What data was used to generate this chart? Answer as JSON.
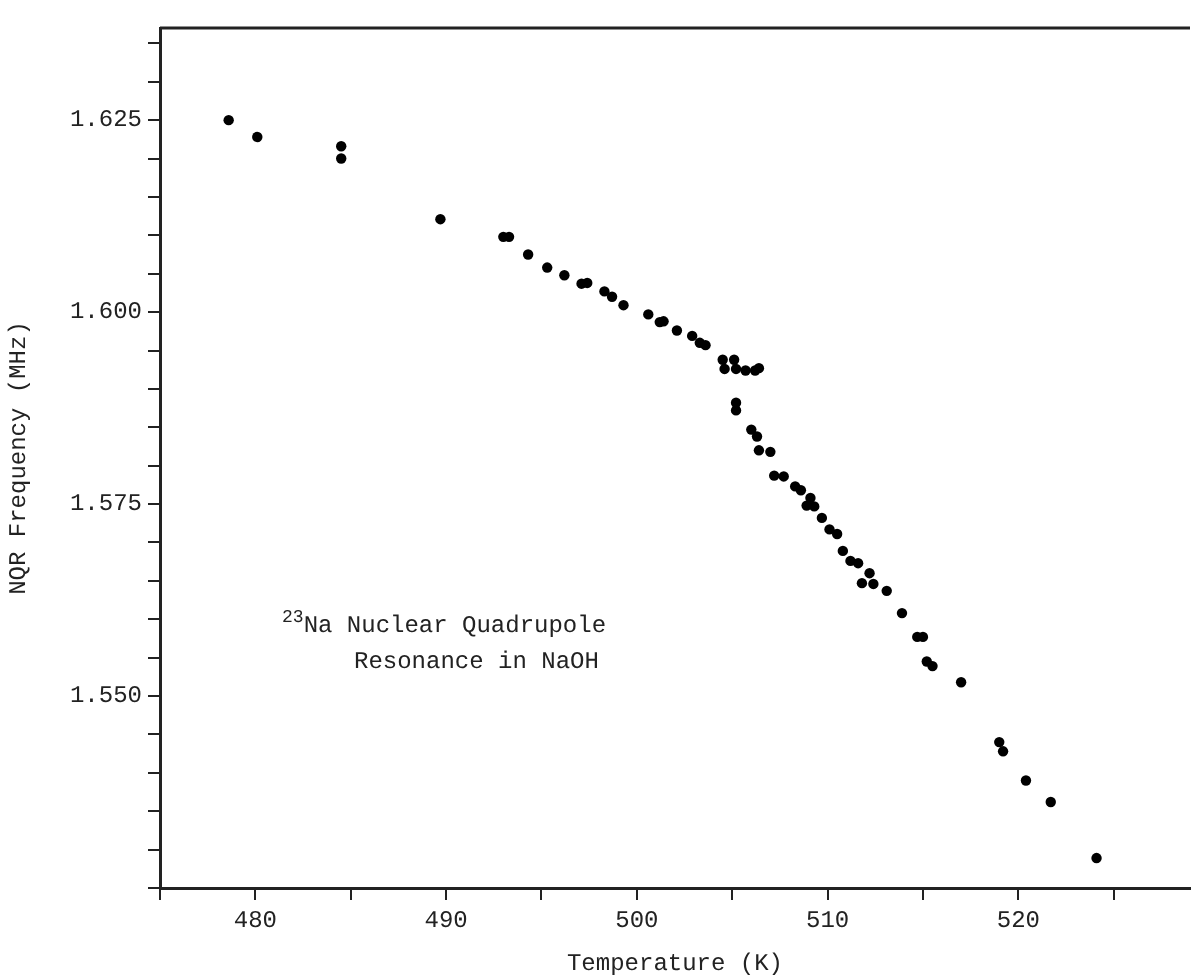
{
  "chart_data": {
    "type": "scatter",
    "xlabel": "Temperature (K)",
    "ylabel": "NQR Frequency (MHz)",
    "annotations": [
      "$^{23}$Na Nuclear Quadrupole\nResonance in NaOH"
    ],
    "marker": "circle",
    "grid": false,
    "legend": false,
    "xlim": [
      475,
      529
    ],
    "xticks": [
      {
        "value": 475,
        "label": null
      },
      480,
      {
        "value": 485,
        "label": null
      },
      490,
      {
        "value": 495,
        "label": null
      },
      500,
      {
        "value": 505,
        "label": null
      },
      510,
      {
        "value": 515,
        "label": null
      },
      520,
      {
        "value": 525,
        "label": null
      }
    ],
    "ylim": [
      1.525,
      1.637
    ],
    "yticks": [
      {
        "value": 1.525,
        "label": null
      },
      {
        "value": 1.53,
        "label": null
      },
      {
        "value": 1.535,
        "label": null
      },
      {
        "value": 1.54,
        "label": null
      },
      {
        "value": 1.545,
        "label": null
      },
      {
        "value": 1.55,
        "label": "1.550"
      },
      {
        "value": 1.555,
        "label": null
      },
      {
        "value": 1.56,
        "label": null
      },
      {
        "value": 1.565,
        "label": null
      },
      {
        "value": 1.57,
        "label": null
      },
      1.575,
      {
        "value": 1.58,
        "label": null
      },
      {
        "value": 1.585,
        "label": null
      },
      {
        "value": 1.59,
        "label": null
      },
      {
        "value": 1.595,
        "label": null
      },
      {
        "value": 1.6,
        "label": "1.600"
      },
      {
        "value": 1.605,
        "label": null
      },
      {
        "value": 1.61,
        "label": null
      },
      {
        "value": 1.615,
        "label": null
      },
      {
        "value": 1.62,
        "label": null
      },
      1.625,
      {
        "value": 1.63,
        "label": null
      },
      {
        "value": 1.635,
        "label": null
      }
    ],
    "series": [
      {
        "color": "#000000",
        "x": [
          478.6,
          480.1,
          484.5,
          484.5,
          489.7,
          493.0,
          493.3,
          494.3,
          495.3,
          496.2,
          497.1,
          497.4,
          498.3,
          498.7,
          499.3,
          500.6,
          501.2,
          501.4,
          502.1,
          502.9,
          503.3,
          503.6,
          504.5,
          505.1,
          504.6,
          505.2,
          505.7,
          506.2,
          506.4,
          505.2,
          505.2,
          506.0,
          506.3,
          506.4,
          507.0,
          507.2,
          507.7,
          508.3,
          508.6,
          509.1,
          508.9,
          509.3,
          509.7,
          510.1,
          510.5,
          510.8,
          511.2,
          511.6,
          512.2,
          511.8,
          512.4,
          513.1,
          513.9,
          514.7,
          515.0,
          515.2,
          515.5,
          517.0,
          519.0,
          519.2,
          520.4,
          521.7,
          524.1
        ],
        "values": [
          1.625,
          1.6228,
          1.6216,
          1.62,
          1.6121,
          1.6098,
          1.6098,
          1.6075,
          1.6058,
          1.6048,
          1.6037,
          1.6038,
          1.6027,
          1.602,
          1.6009,
          1.5997,
          1.5987,
          1.5988,
          1.5976,
          1.5969,
          1.596,
          1.5957,
          1.5938,
          1.5938,
          1.5926,
          1.5926,
          1.5924,
          1.5924,
          1.5927,
          1.5882,
          1.5872,
          1.5847,
          1.5838,
          1.582,
          1.5818,
          1.5787,
          1.5786,
          1.5773,
          1.5768,
          1.5758,
          1.5748,
          1.5747,
          1.5732,
          1.5717,
          1.5711,
          1.5689,
          1.5676,
          1.5673,
          1.566,
          1.5647,
          1.5646,
          1.5637,
          1.5608,
          1.5577,
          1.5577,
          1.5545,
          1.5539,
          1.5518,
          1.544,
          1.5428,
          1.539,
          1.5362,
          1.5289
        ]
      }
    ]
  }
}
